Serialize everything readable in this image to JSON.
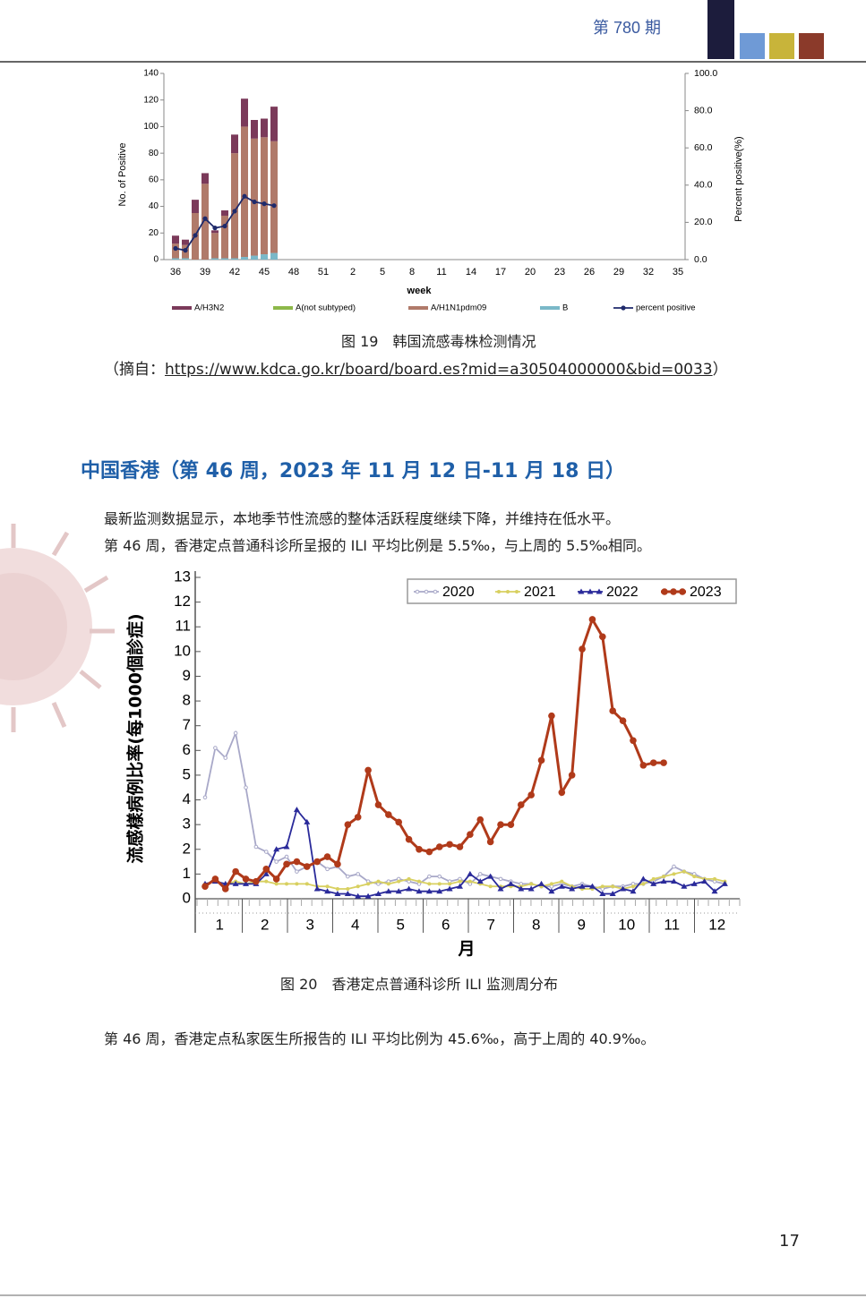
{
  "header": {
    "issue": "第 780 期"
  },
  "chart_data": [
    {
      "type": "bar",
      "stacked": true,
      "categories": [
        "36",
        null,
        null,
        "39",
        null,
        null,
        "42",
        null,
        null,
        "45",
        null,
        null,
        "48",
        null,
        null,
        "51",
        null,
        null,
        "2",
        null,
        null,
        "5",
        null,
        null,
        "8",
        null,
        null,
        "11",
        null,
        null,
        "14",
        null,
        null,
        "17",
        null,
        null,
        "20",
        null,
        null,
        "23",
        null,
        null,
        "26",
        null,
        null,
        "29",
        null,
        null,
        "32",
        null,
        null,
        "35"
      ],
      "xlabel": "week",
      "ylabel": "No. of Positive",
      "y2label": "Percent positive(%)",
      "ylim": [
        0,
        140
      ],
      "yticks": [
        0,
        20,
        40,
        60,
        80,
        100,
        120,
        140
      ],
      "y2lim": [
        0,
        100
      ],
      "y2ticks": [
        {
          "value": 0,
          "label": "0.0"
        },
        {
          "value": 20,
          "label": "20.0"
        },
        {
          "value": 40,
          "label": "40.0"
        },
        {
          "value": 60,
          "label": "60.0"
        },
        {
          "value": 80,
          "label": "80.0"
        },
        {
          "value": 100,
          "label": "100.0"
        }
      ],
      "series": [
        {
          "name": "A/H3N2",
          "color": "#7b3a5a",
          "values": [
            6,
            4,
            10,
            8,
            2,
            4,
            14,
            21,
            14,
            14,
            26,
            null,
            null,
            null,
            null,
            null,
            null,
            null,
            null,
            null,
            null,
            null,
            null,
            null,
            null,
            null,
            null,
            null,
            null,
            null,
            null,
            null,
            null,
            null,
            null,
            null,
            null,
            null,
            null,
            null,
            null,
            null,
            null,
            null,
            null,
            null,
            null,
            null,
            null,
            null,
            null,
            null
          ]
        },
        {
          "name": "A(not subtyped)",
          "color": "#8db84a",
          "values": [
            0,
            0,
            0,
            0,
            0,
            0,
            0,
            0,
            0,
            0,
            0,
            null,
            null,
            null,
            null,
            null,
            null,
            null,
            null,
            null,
            null,
            null,
            null,
            null,
            null,
            null,
            null,
            null,
            null,
            null,
            null,
            null,
            null,
            null,
            null,
            null,
            null,
            null,
            null,
            null,
            null,
            null,
            null,
            null,
            null,
            null,
            null,
            null,
            null,
            null,
            null,
            null
          ]
        },
        {
          "name": "A/H1N1pdm09",
          "color": "#b07a6a",
          "values": [
            11,
            10,
            35,
            57,
            19,
            32,
            79,
            98,
            88,
            88,
            84,
            null,
            null,
            null,
            null,
            null,
            null,
            null,
            null,
            null,
            null,
            null,
            null,
            null,
            null,
            null,
            null,
            null,
            null,
            null,
            null,
            null,
            null,
            null,
            null,
            null,
            null,
            null,
            null,
            null,
            null,
            null,
            null,
            null,
            null,
            null,
            null,
            null,
            null,
            null,
            null,
            null
          ]
        },
        {
          "name": "B",
          "color": "#7ab8c8",
          "values": [
            1,
            1,
            0,
            0,
            1,
            1,
            1,
            2,
            3,
            4,
            5,
            null,
            null,
            null,
            null,
            null,
            null,
            null,
            null,
            null,
            null,
            null,
            null,
            null,
            null,
            null,
            null,
            null,
            null,
            null,
            null,
            null,
            null,
            null,
            null,
            null,
            null,
            null,
            null,
            null,
            null,
            null,
            null,
            null,
            null,
            null,
            null,
            null,
            null,
            null,
            null,
            null
          ]
        },
        {
          "name": "percent positive",
          "color": "#1f2a6b",
          "type": "line",
          "axis": "y2",
          "values": [
            6,
            5,
            13,
            22,
            17,
            18,
            26,
            34,
            31,
            30,
            29,
            null,
            null,
            null,
            null,
            null,
            null,
            null,
            null,
            null,
            null,
            null,
            null,
            null,
            null,
            null,
            null,
            null,
            null,
            null,
            null,
            null,
            null,
            null,
            null,
            null,
            null,
            null,
            null,
            null,
            null,
            null,
            null,
            null,
            null,
            null,
            null,
            null,
            null,
            null,
            null,
            null
          ]
        }
      ]
    },
    {
      "type": "line",
      "legend": "upper right",
      "xlabel": "月",
      "ylabel": "流感樣病例比率(每1000個診症)",
      "months": [
        "1",
        "2",
        "3",
        "4",
        "5",
        "6",
        "7",
        "8",
        "9",
        "10",
        "11",
        "12"
      ],
      "ylim": [
        0,
        13
      ],
      "yticks": [
        0,
        1,
        2,
        3,
        4,
        5,
        6,
        7,
        8,
        9,
        10,
        11,
        12,
        13
      ],
      "series": [
        {
          "name": "2020",
          "color": "#a8a8c8",
          "marker": "open",
          "values": [
            4.1,
            6.1,
            5.7,
            6.7,
            4.5,
            2.1,
            1.9,
            1.5,
            1.7,
            1.1,
            1.3,
            1.5,
            1.2,
            1.3,
            0.9,
            1.0,
            0.7,
            0.6,
            0.7,
            0.8,
            0.7,
            0.6,
            0.9,
            0.9,
            0.7,
            0.8,
            0.6,
            1.0,
            0.9,
            0.8,
            0.7,
            0.6,
            0.6,
            0.5,
            0.5,
            0.6,
            0.5,
            0.6,
            0.5,
            0.4,
            0.5,
            0.5,
            0.6,
            0.6,
            0.7,
            0.9,
            1.3,
            1.1,
            1.0,
            0.8,
            0.7,
            0.6
          ]
        },
        {
          "name": "2021",
          "color": "#d8d060",
          "marker": "star",
          "values": [
            0.6,
            0.7,
            0.6,
            0.7,
            0.6,
            0.7,
            0.7,
            0.6,
            0.6,
            0.6,
            0.6,
            0.5,
            0.5,
            0.4,
            0.4,
            0.5,
            0.6,
            0.7,
            0.6,
            0.7,
            0.8,
            0.7,
            0.6,
            0.6,
            0.6,
            0.7,
            0.7,
            0.6,
            0.5,
            0.5,
            0.5,
            0.5,
            0.6,
            0.5,
            0.6,
            0.7,
            0.5,
            0.4,
            0.4,
            0.5,
            0.5,
            0.4,
            0.5,
            0.6,
            0.8,
            0.9,
            1.0,
            1.1,
            0.9,
            0.8,
            0.8,
            0.7
          ]
        },
        {
          "name": "2022",
          "color": "#2a2a9a",
          "marker": "triangle",
          "values": [
            0.6,
            0.7,
            0.6,
            0.6,
            0.6,
            0.6,
            1.0,
            2.0,
            2.1,
            3.6,
            3.1,
            0.4,
            0.3,
            0.2,
            0.2,
            0.1,
            0.1,
            0.2,
            0.3,
            0.3,
            0.4,
            0.3,
            0.3,
            0.3,
            0.4,
            0.5,
            1.0,
            0.7,
            0.9,
            0.4,
            0.6,
            0.4,
            0.4,
            0.6,
            0.3,
            0.5,
            0.4,
            0.5,
            0.5,
            0.2,
            0.2,
            0.4,
            0.3,
            0.8,
            0.6,
            0.7,
            0.7,
            0.5,
            0.6,
            0.7,
            0.3,
            0.6
          ]
        },
        {
          "name": "2023",
          "color": "#b03a1a",
          "marker": "circle",
          "values": [
            0.5,
            0.8,
            0.4,
            1.1,
            0.8,
            0.7,
            1.2,
            0.8,
            1.4,
            1.5,
            1.3,
            1.5,
            1.7,
            1.4,
            3.0,
            3.3,
            5.2,
            3.8,
            3.4,
            3.1,
            2.4,
            2.0,
            1.9,
            2.1,
            2.2,
            2.1,
            2.6,
            3.2,
            2.3,
            3.0,
            3.0,
            3.8,
            4.2,
            5.6,
            7.4,
            4.3,
            5.0,
            10.1,
            11.3,
            10.6,
            7.6,
            7.2,
            6.4,
            5.4,
            5.5,
            5.5,
            null,
            null,
            null,
            null,
            null,
            null
          ]
        }
      ]
    }
  ],
  "figure19": {
    "caption": "图 19　韩国流感毒株检测情况",
    "source_prefix": "（摘自：",
    "source_url": "https://www.kdca.go.kr/board/board.es?mid=a30504000000&bid=0033",
    "source_suffix": "）"
  },
  "section": {
    "heading": "中国香港（第 46 周，2023 年 11 月 12 日-11 月 18 日）",
    "paragraphs": [
      "最新监测数据显示，本地季节性流感的整体活跃程度继续下降，并维持在低水平。",
      "第 46 周，香港定点普通科诊所呈报的 ILI 平均比例是 5.5‰，与上周的 5.5‰相同。"
    ]
  },
  "figure20": {
    "caption": "图 20　香港定点普通科诊所 ILI 监测周分布"
  },
  "closing": {
    "paragraph": "第 46 周，香港定点私家医生所报告的 ILI 平均比例为 45.6‰，高于上周的 40.9‰。"
  },
  "footer": {
    "page_number": "17"
  }
}
